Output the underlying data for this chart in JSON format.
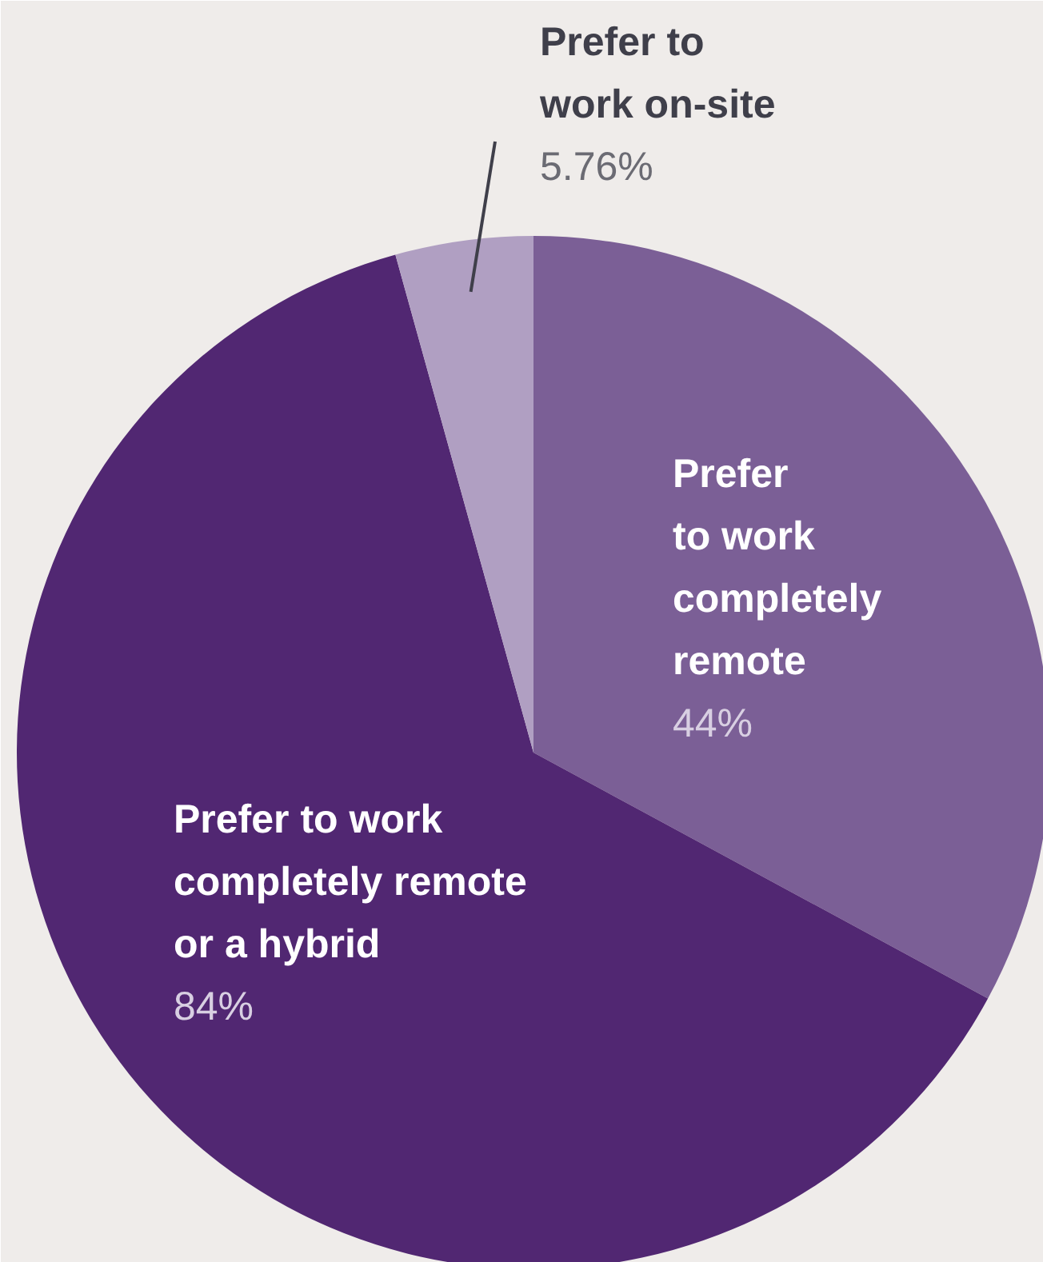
{
  "chart_data": {
    "type": "pie",
    "categories": [
      "Prefer to work completely remote",
      "Prefer to work completely remote or a hybrid",
      "Prefer to work on-site"
    ],
    "values": [
      44,
      84,
      5.76
    ],
    "value_labels": [
      "44%",
      "84%",
      "5.76%"
    ],
    "colors": [
      "#7b5f96",
      "#512772",
      "#b09fc2"
    ]
  }
}
